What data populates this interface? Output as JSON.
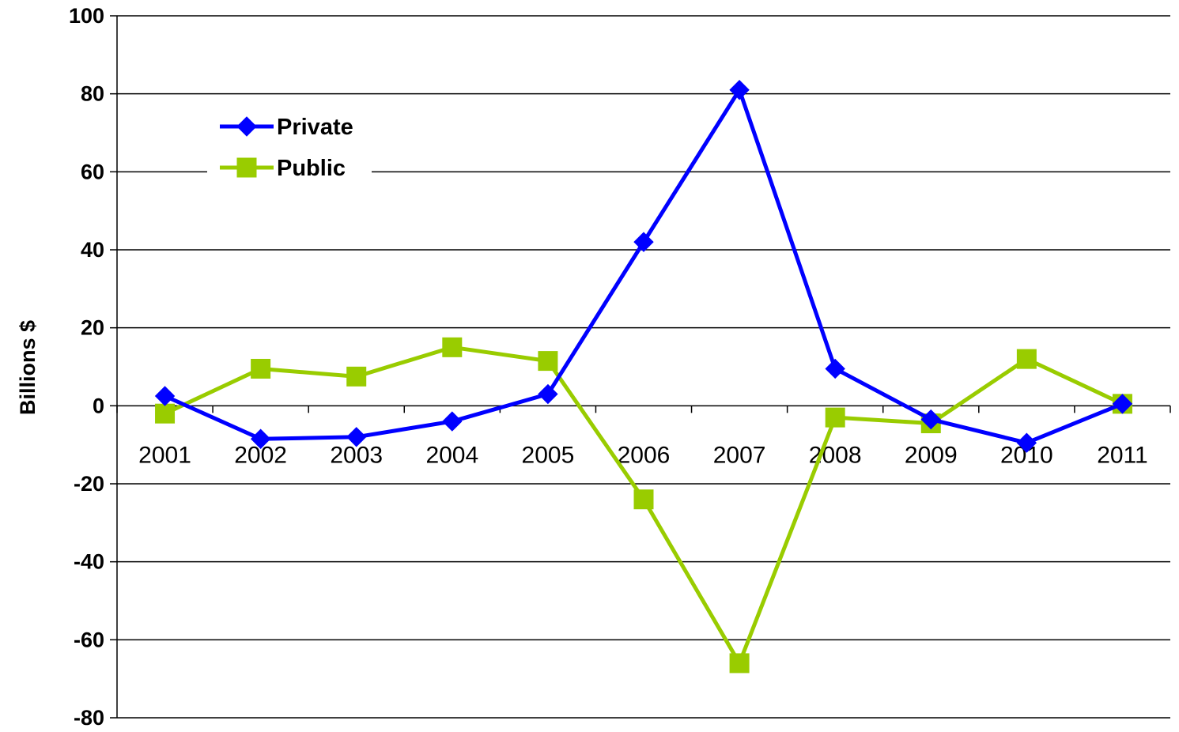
{
  "chart_data": {
    "type": "line",
    "title": "",
    "xlabel": "",
    "ylabel": "Billions $",
    "ylim": [
      -80,
      100
    ],
    "ytick_step": 20,
    "y_ticks": [
      "100",
      "80",
      "60",
      "40",
      "20",
      "0",
      "-20",
      "-40",
      "-60",
      "-80"
    ],
    "grid": true,
    "legend_position": "top-left",
    "categories": [
      "2001",
      "2002",
      "2003",
      "2004",
      "2005",
      "2006",
      "2007",
      "2008",
      "2009",
      "2010",
      "2011"
    ],
    "series": [
      {
        "name": "Private",
        "color": "#0000ff",
        "marker": "diamond",
        "values": [
          2.5,
          -8.5,
          -8,
          -4,
          3,
          42,
          81,
          9.5,
          -3.5,
          -9.5,
          0.5
        ]
      },
      {
        "name": "Public",
        "color": "#99cc00",
        "marker": "square",
        "values": [
          -2,
          9.5,
          7.5,
          15,
          11.5,
          -24,
          -66,
          -3,
          -4.5,
          12,
          0.5
        ]
      }
    ]
  }
}
